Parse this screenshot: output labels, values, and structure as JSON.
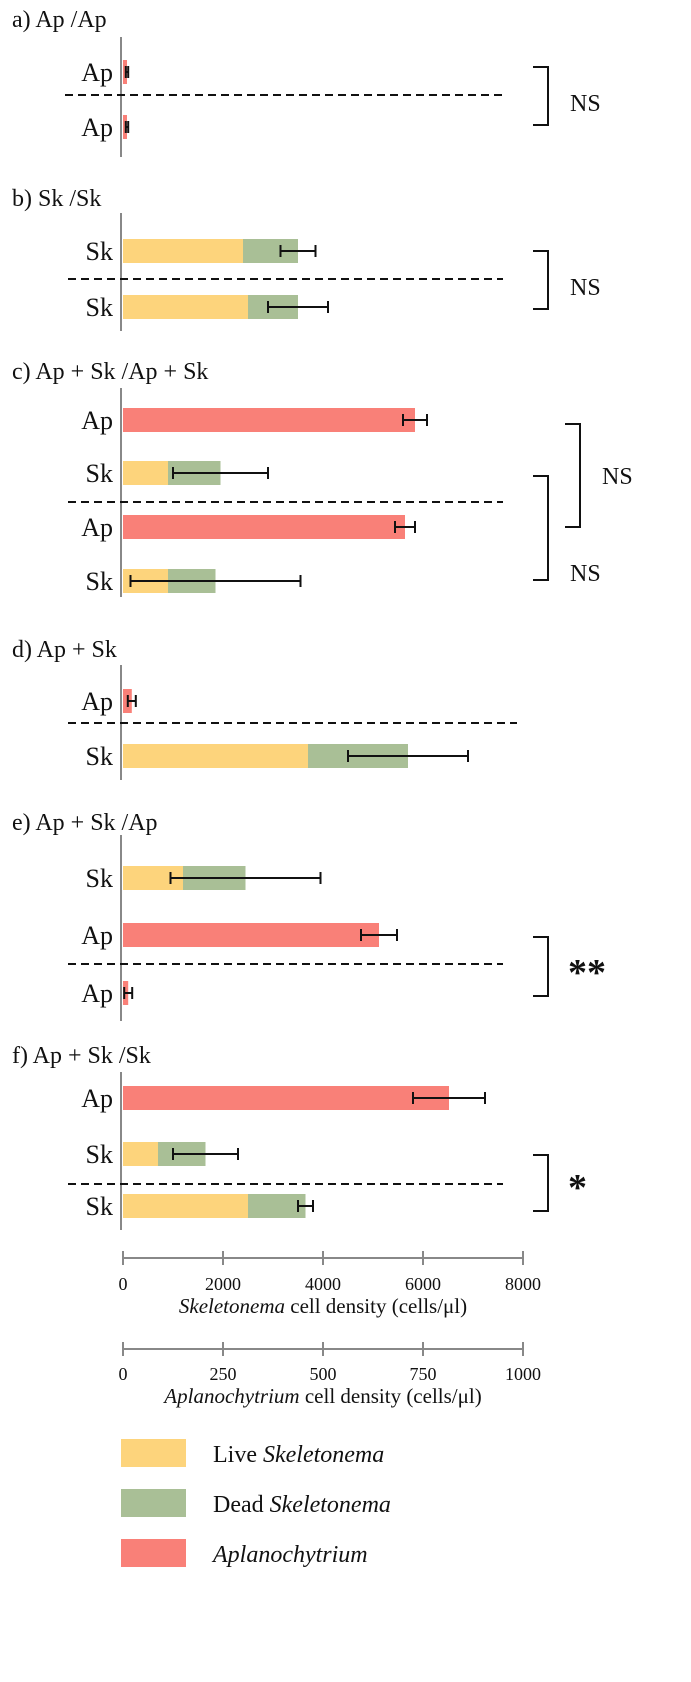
{
  "colors": {
    "live": "#fdd47c",
    "dead": "#a9bf96",
    "aplano": "#f98078"
  },
  "legend": [
    {
      "key": "live",
      "prefix": "Live ",
      "italic": "Skeletonema"
    },
    {
      "key": "dead",
      "prefix": "Dead ",
      "italic": "Skeletonema"
    },
    {
      "key": "aplano",
      "prefix": "",
      "italic": "Aplanochytrium"
    }
  ],
  "chart_data": {
    "type": "bar",
    "orientation": "horizontal",
    "stacked": true,
    "axes": {
      "skeletonema": {
        "label_italic": "Skeletonema",
        "label_rest": " cell density (cells/μl)",
        "range": [
          0,
          8000
        ],
        "ticks": [
          "0",
          "2000",
          "4000",
          "6000",
          "8000"
        ]
      },
      "aplanochytrium": {
        "label_italic": "Aplanochytrium",
        "label_rest": " cell density (cells/μl)",
        "range": [
          0,
          1000
        ],
        "ticks": [
          "0",
          "250",
          "500",
          "750",
          "1000"
        ]
      }
    },
    "panels": [
      {
        "title": "a) Ap /Ap",
        "rows": [
          {
            "label": "Ap",
            "type": "Ap",
            "value": 10,
            "error": 3
          },
          {
            "label": "Ap",
            "type": "Ap",
            "value": 10,
            "error": 3
          }
        ],
        "brackets": [
          {
            "from": 0,
            "to": 1,
            "label": "NS",
            "size": "normal"
          }
        ]
      },
      {
        "title": "b) Sk /Sk",
        "rows": [
          {
            "label": "Sk",
            "type": "Sk",
            "live": 2400,
            "dead": 1100,
            "error": 350
          },
          {
            "label": "Sk",
            "type": "Sk",
            "live": 2500,
            "dead": 1000,
            "error": 600
          }
        ],
        "brackets": [
          {
            "from": 0,
            "to": 1,
            "label": "NS",
            "size": "normal"
          }
        ]
      },
      {
        "title": "c) Ap + Sk /Ap + Sk",
        "rows": [
          {
            "label": "Ap",
            "type": "Ap",
            "value": 730,
            "error": 30
          },
          {
            "label": "Sk",
            "type": "Sk",
            "live": 900,
            "dead": 1050,
            "error": 950
          },
          {
            "label": "Ap",
            "type": "Ap",
            "value": 705,
            "error": 25
          },
          {
            "label": "Sk",
            "type": "Sk",
            "live": 900,
            "dead": 950,
            "error": 1700
          }
        ],
        "brackets": [
          {
            "from": 0,
            "to": 2,
            "label": "NS",
            "size": "normal"
          },
          {
            "from": 1,
            "to": 3,
            "label": "NS",
            "size": "normal"
          }
        ]
      },
      {
        "title": "d) Ap + Sk",
        "rows": [
          {
            "label": "Ap",
            "type": "Ap",
            "value": 22,
            "error": 10
          },
          {
            "label": "Sk",
            "type": "Sk",
            "live": 3700,
            "dead": 2000,
            "error": 1200
          }
        ],
        "brackets": []
      },
      {
        "title": "e) Ap + Sk /Ap",
        "rows": [
          {
            "label": "Sk",
            "type": "Sk",
            "live": 1200,
            "dead": 1250,
            "error": 1500
          },
          {
            "label": "Ap",
            "type": "Ap",
            "value": 640,
            "error": 45
          },
          {
            "label": "Ap",
            "type": "Ap",
            "value": 13,
            "error": 10
          }
        ],
        "brackets": [
          {
            "from": 1,
            "to": 2,
            "label": "**",
            "size": "big"
          }
        ]
      },
      {
        "title": "f) Ap + Sk /Sk",
        "rows": [
          {
            "label": "Ap",
            "type": "Ap",
            "value": 815,
            "error": 90
          },
          {
            "label": "Sk",
            "type": "Sk",
            "live": 700,
            "dead": 950,
            "error": 650
          },
          {
            "label": "Sk",
            "type": "Sk",
            "live": 2500,
            "dead": 1150,
            "error": 150
          }
        ],
        "brackets": [
          {
            "from": 1,
            "to": 2,
            "label": "*",
            "size": "big"
          }
        ]
      }
    ]
  }
}
